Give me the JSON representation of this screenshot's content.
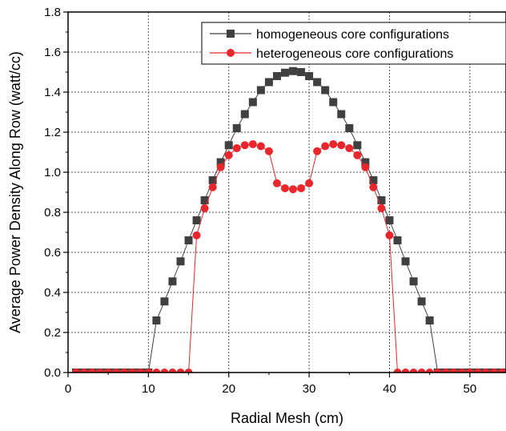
{
  "chart_data": {
    "type": "line",
    "xlabel": "Radial Mesh (cm)",
    "ylabel": "Average Power Density Along Row (watt/cc)",
    "xlim": [
      0,
      54.5
    ],
    "ylim": [
      0,
      1.8
    ],
    "xticks": [
      0,
      10,
      20,
      30,
      40,
      50
    ],
    "yticks": [
      0.0,
      0.2,
      0.4,
      0.6,
      0.8,
      1.0,
      1.2,
      1.4,
      1.6,
      1.8
    ],
    "xtick_labels": [
      "0",
      "10",
      "20",
      "30",
      "40",
      "50"
    ],
    "ytick_labels": [
      "0.0",
      "0.2",
      "0.4",
      "0.6",
      "0.8",
      "1.0",
      "1.2",
      "1.4",
      "1.6",
      "1.8"
    ],
    "grid": true,
    "legend_position": "top-right",
    "series": [
      {
        "name": "homogeneous  core configurations",
        "color": "#404040",
        "marker": "square",
        "x": [
          1,
          2,
          3,
          4,
          5,
          6,
          7,
          8,
          9,
          10,
          11,
          12,
          13,
          14,
          15,
          16,
          17,
          18,
          19,
          20,
          21,
          22,
          23,
          24,
          25,
          26,
          27,
          28,
          29,
          30,
          31,
          32,
          33,
          34,
          35,
          36,
          37,
          38,
          39,
          40,
          41,
          42,
          43,
          44,
          45,
          46,
          47,
          48,
          49,
          50,
          51,
          52,
          53,
          54,
          55
        ],
        "y": [
          0,
          0,
          0,
          0,
          0,
          0,
          0,
          0,
          0,
          0,
          0.26,
          0.355,
          0.455,
          0.555,
          0.66,
          0.76,
          0.86,
          0.96,
          1.05,
          1.135,
          1.22,
          1.29,
          1.35,
          1.41,
          1.45,
          1.48,
          1.497,
          1.505,
          1.5,
          1.48,
          1.45,
          1.41,
          1.35,
          1.29,
          1.22,
          1.135,
          1.05,
          0.96,
          0.86,
          0.76,
          0.66,
          0.555,
          0.455,
          0.355,
          0.26,
          0,
          0,
          0,
          0,
          0,
          0,
          0,
          0,
          0,
          0
        ]
      },
      {
        "name": "heterogeneous core configurations",
        "color": "#e8262b",
        "marker": "circle",
        "x": [
          1,
          2,
          3,
          4,
          5,
          6,
          7,
          8,
          9,
          10,
          11,
          12,
          13,
          14,
          15,
          16,
          17,
          18,
          19,
          20,
          21,
          22,
          23,
          24,
          25,
          26,
          27,
          28,
          29,
          30,
          31,
          32,
          33,
          34,
          35,
          36,
          37,
          38,
          39,
          40,
          41,
          42,
          43,
          44,
          45,
          46,
          47,
          48,
          49,
          50,
          51,
          52,
          53,
          54,
          55
        ],
        "y": [
          0,
          0,
          0,
          0,
          0,
          0,
          0,
          0,
          0,
          0,
          0,
          0,
          0,
          0,
          0,
          0.685,
          0.82,
          0.925,
          1.025,
          1.085,
          1.12,
          1.135,
          1.14,
          1.13,
          1.105,
          0.945,
          0.92,
          0.915,
          0.92,
          0.945,
          1.105,
          1.13,
          1.14,
          1.135,
          1.12,
          1.085,
          1.025,
          0.925,
          0.82,
          0.685,
          0,
          0,
          0,
          0,
          0,
          0,
          0,
          0,
          0,
          0,
          0,
          0,
          0,
          0,
          0
        ]
      }
    ]
  }
}
